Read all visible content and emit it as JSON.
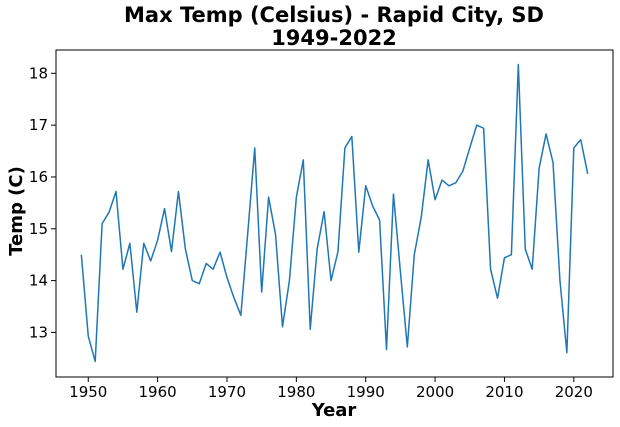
{
  "chart_data": {
    "type": "line",
    "title": [
      "Max Temp (Celsius) - Rapid City, SD",
      "1949-2022"
    ],
    "xlabel": "Year",
    "ylabel": "Temp (C)",
    "xlim": [
      1945.35,
      2025.65
    ],
    "ylim": [
      12.14,
      18.45
    ],
    "xticks": [
      1950,
      1960,
      1970,
      1980,
      1990,
      2000,
      2010,
      2020
    ],
    "yticks": [
      13,
      14,
      15,
      16,
      17,
      18
    ],
    "grid": false,
    "line_color": "#1f77b4",
    "series": [
      {
        "x": [
          1949,
          1950,
          1951,
          1952,
          1953,
          1954,
          1955,
          1956,
          1957,
          1958,
          1959,
          1960,
          1961,
          1962,
          1963,
          1964,
          1965,
          1966,
          1967,
          1968,
          1969,
          1970,
          1971,
          1972,
          1973,
          1974,
          1975,
          1976,
          1977,
          1978,
          1979,
          1980,
          1981,
          1982,
          1983,
          1984,
          1985,
          1986,
          1987,
          1988,
          1989,
          1990,
          1991,
          1992,
          1993,
          1994,
          1995,
          1996,
          1997,
          1998,
          1999,
          2000,
          2001,
          2002,
          2003,
          2004,
          2005,
          2006,
          2007,
          2008,
          2009,
          2010,
          2011,
          2012,
          2013,
          2014,
          2015,
          2016,
          2017,
          2018,
          2019,
          2020,
          2021,
          2022
        ],
        "y": [
          14.5,
          12.93,
          12.44,
          15.1,
          15.32,
          15.72,
          14.22,
          14.72,
          13.39,
          14.72,
          14.38,
          14.78,
          15.39,
          14.56,
          15.72,
          14.61,
          14.0,
          13.94,
          14.33,
          14.22,
          14.55,
          14.06,
          13.67,
          13.33,
          14.93,
          16.56,
          13.78,
          15.61,
          14.89,
          13.11,
          14.0,
          15.61,
          16.33,
          13.06,
          14.61,
          15.33,
          14.0,
          14.56,
          16.56,
          16.78,
          14.55,
          15.83,
          15.44,
          15.17,
          12.67,
          15.67,
          14.17,
          12.72,
          14.5,
          15.22,
          16.33,
          15.56,
          15.94,
          15.83,
          15.89,
          16.11,
          16.56,
          17.0,
          16.94,
          14.22,
          13.66,
          14.44,
          14.5,
          18.17,
          14.61,
          14.22,
          16.17,
          16.83,
          16.28,
          14.0,
          12.61,
          16.56,
          16.72,
          16.06
        ]
      }
    ]
  }
}
